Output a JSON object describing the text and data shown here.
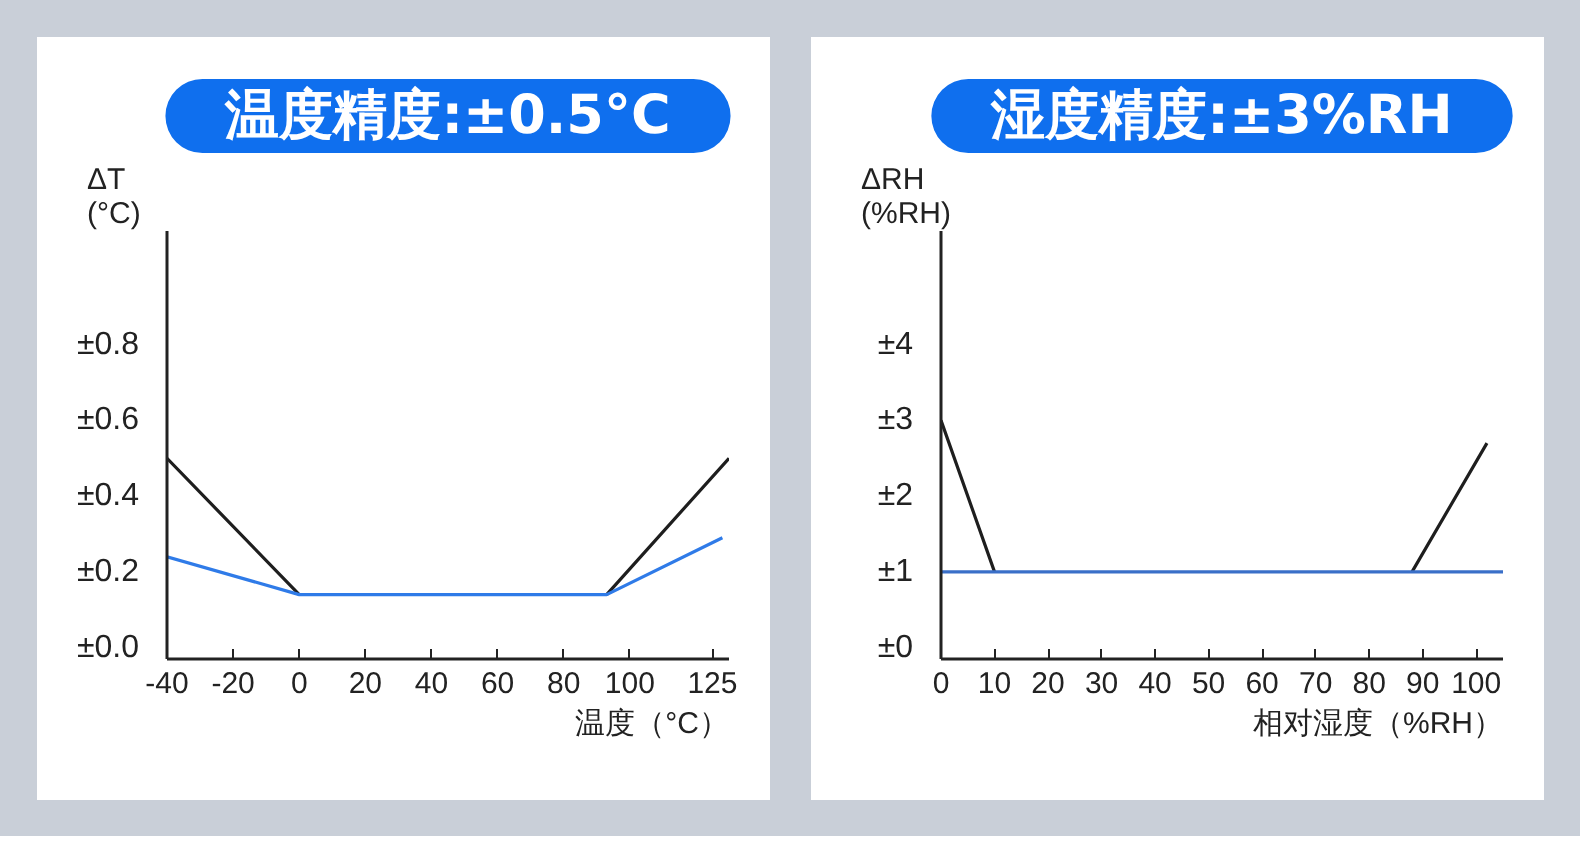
{
  "chart_data": [
    {
      "type": "line",
      "title": "温度精度:±0.5°C",
      "xlabel": "温度（°C）",
      "ylabel": "ΔT\n(°C)",
      "xlim": [
        -40,
        130
      ],
      "xticks": [
        -40,
        -20,
        0,
        20,
        40,
        60,
        80,
        100,
        125
      ],
      "ylim": [
        -0.03,
        1.1
      ],
      "yticks": [
        {
          "value": 0,
          "label": "±0.0"
        },
        {
          "value": 0.2,
          "label": "±0.2"
        },
        {
          "value": 0.4,
          "label": "±0.4"
        },
        {
          "value": 0.6,
          "label": "±0.6"
        },
        {
          "value": 0.8,
          "label": "±0.8"
        }
      ],
      "series": [
        {
          "color": "#1e1e1e",
          "x": [
            -40,
            0,
            50,
            93,
            130
          ],
          "values": [
            0.5,
            0.14,
            null,
            0.14,
            0.5
          ]
        },
        {
          "color": "#2f7be8",
          "x": [
            -40,
            0,
            93,
            128
          ],
          "values": [
            0.24,
            0.14,
            0.14,
            0.29
          ]
        }
      ]
    },
    {
      "type": "line",
      "title": "湿度精度:±3%RH",
      "xlabel": "相对湿度（%RH）",
      "ylabel": "ΔRH\n(%RH)",
      "xlim": [
        0,
        105
      ],
      "xticks": [
        0,
        10,
        20,
        30,
        40,
        50,
        60,
        70,
        80,
        90,
        100
      ],
      "ylim": [
        -0.15,
        5.5
      ],
      "yticks": [
        {
          "value": 0,
          "label": "±0"
        },
        {
          "value": 1,
          "label": "±1"
        },
        {
          "value": 2,
          "label": "±2"
        },
        {
          "value": 3,
          "label": "±3"
        },
        {
          "value": 4,
          "label": "±4"
        }
      ],
      "series": [
        {
          "color": "#1e1e1e",
          "x": [
            0,
            10,
            50,
            88,
            102
          ],
          "values": [
            3,
            1,
            null,
            1,
            2.7
          ]
        },
        {
          "color": "#3a6fc8",
          "x": [
            0,
            105
          ],
          "values": [
            1,
            1
          ]
        }
      ]
    }
  ]
}
